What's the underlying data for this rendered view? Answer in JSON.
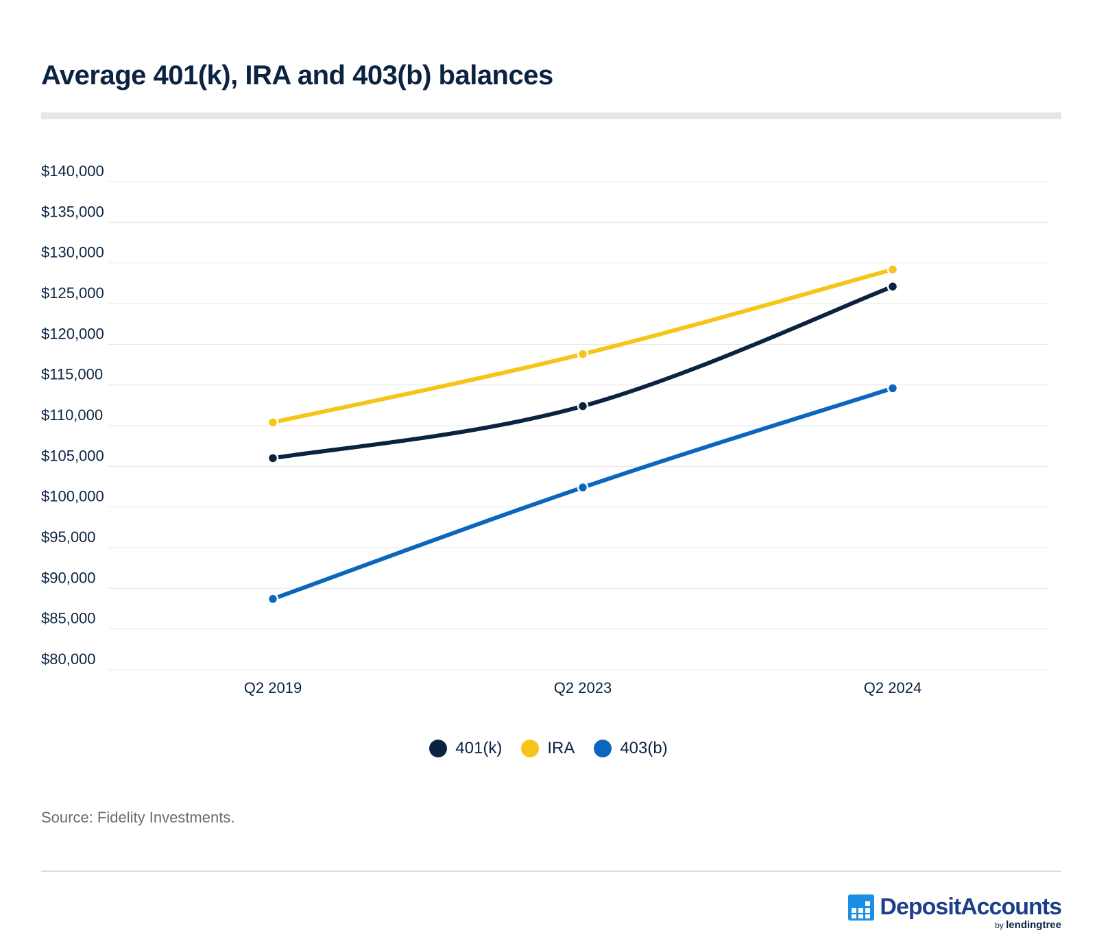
{
  "title": "Average 401(k), IRA and 403(b) balances",
  "chart_data": {
    "type": "line",
    "title": "Average 401(k), IRA and 403(b) balances",
    "xlabel": "",
    "ylabel": "",
    "categories": [
      "Q2 2019",
      "Q2 2023",
      "Q2 2024"
    ],
    "ylim": [
      80000,
      140000
    ],
    "yticks": [
      80000,
      85000,
      90000,
      95000,
      100000,
      105000,
      110000,
      115000,
      120000,
      125000,
      130000,
      135000,
      140000
    ],
    "ytick_labels": [
      "$80,000",
      "$85,000",
      "$90,000",
      "$95,000",
      "$100,000",
      "$105,000",
      "$110,000",
      "$115,000",
      "$120,000",
      "$125,000",
      "$130,000",
      "$135,000",
      "$140,000"
    ],
    "grid": true,
    "legend_position": "bottom-center",
    "series": [
      {
        "name": "401(k)",
        "color": "#0b2341",
        "values": [
          106000,
          112400,
          127100
        ]
      },
      {
        "name": "IRA",
        "color": "#f5c518",
        "values": [
          110400,
          118800,
          129200
        ]
      },
      {
        "name": "403(b)",
        "color": "#0a67bd",
        "values": [
          88700,
          102400,
          114600
        ]
      }
    ]
  },
  "source": "Source: Fidelity Investments.",
  "brand": {
    "name": "DepositAccounts",
    "by": "by",
    "partner": "lendingtree"
  }
}
